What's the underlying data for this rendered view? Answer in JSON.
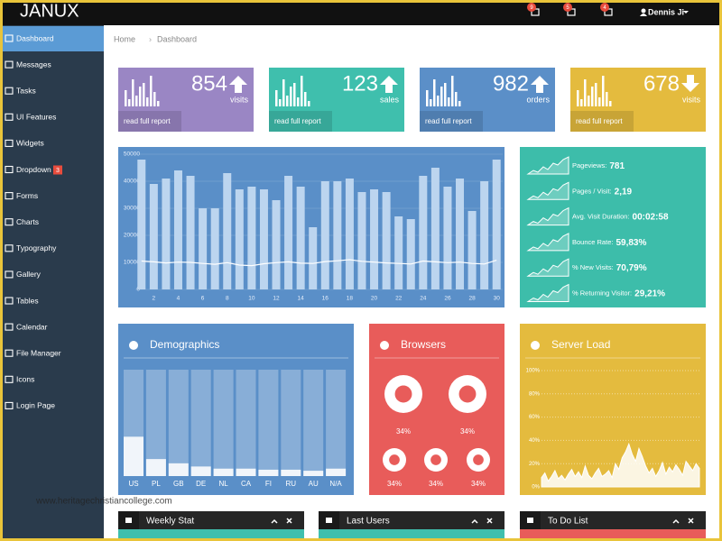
{
  "brand": "JANUX",
  "topbar": {
    "notifications": [
      "9",
      "5",
      "4"
    ],
    "user": "Dennis Ji"
  },
  "sidebar": {
    "items": [
      "Dashboard",
      "Messages",
      "Tasks",
      "UI Features",
      "Widgets",
      "Dropdown",
      "Forms",
      "Charts",
      "Typography",
      "Gallery",
      "Tables",
      "Calendar",
      "File Manager",
      "Icons",
      "Login Page"
    ],
    "dropdown_badge": "3"
  },
  "breadcrumb": [
    "Home",
    "Dashboard"
  ],
  "stat_boxes": [
    {
      "value": 854,
      "label": "visits",
      "link": "read full report",
      "color": "#9a86c4",
      "trend": "up"
    },
    {
      "value": 123,
      "label": "sales",
      "link": "read full report",
      "color": "#3fbfad",
      "trend": "up"
    },
    {
      "value": 982,
      "label": "orders",
      "link": "read full report",
      "color": "#5b8fc8",
      "trend": "up"
    },
    {
      "value": 678,
      "label": "visits",
      "link": "read full report",
      "color": "#e4bb3e",
      "trend": "down"
    }
  ],
  "traffic_chart": {
    "type": "bar",
    "x": [
      1,
      2,
      3,
      4,
      5,
      6,
      7,
      8,
      9,
      10,
      11,
      12,
      13,
      14,
      15,
      16,
      17,
      18,
      19,
      20,
      21,
      22,
      23,
      24,
      25,
      26,
      27,
      28,
      29,
      30
    ],
    "values": [
      48000,
      39000,
      41000,
      44000,
      42000,
      30000,
      30000,
      43000,
      37000,
      38000,
      37000,
      33000,
      42000,
      38000,
      23000,
      40000,
      40000,
      41000,
      36000,
      37000,
      36000,
      27000,
      26000,
      42000,
      45000,
      38000,
      41000,
      29000,
      40000,
      48000
    ],
    "line": [
      10500,
      10200,
      9800,
      10100,
      10000,
      9600,
      9300,
      9900,
      9000,
      8800,
      9500,
      9900,
      10200,
      9700,
      9600,
      10300,
      10600,
      11000,
      10400,
      10100,
      9800,
      9600,
      9400,
      10500,
      10200,
      9900,
      10100,
      9600,
      9400,
      10800
    ],
    "color": "#bcd5ef",
    "line_color": "#ffffff",
    "xlim": [
      0.5,
      30.5
    ],
    "xticks": [
      2,
      4,
      6,
      8,
      10,
      12,
      14,
      16,
      18,
      20,
      22,
      24,
      26,
      28,
      30
    ],
    "ylim": [
      0,
      50000
    ],
    "yticks": [
      0,
      10000,
      20000,
      30000,
      40000,
      50000
    ]
  },
  "visit_stats": [
    {
      "label": "Pageviews:",
      "value": "781"
    },
    {
      "label": "Pages / Visit:",
      "value": "2,19"
    },
    {
      "label": "Avg. Visit Duration:",
      "value": "00:02:58"
    },
    {
      "label": "Bounce Rate:",
      "value": "59,83%"
    },
    {
      "label": "% New Visits:",
      "value": "70,79%"
    },
    {
      "label": "% Returning Visitor:",
      "value": "29,21%"
    }
  ],
  "demographics": {
    "type": "bar",
    "title": "Demographics",
    "categories": [
      "US",
      "PL",
      "GB",
      "DE",
      "NL",
      "CA",
      "FI",
      "RU",
      "AU",
      "N/A"
    ],
    "values": [
      37,
      16,
      12,
      9,
      7,
      7,
      6,
      6,
      5,
      7
    ],
    "ylim": [
      0,
      100
    ]
  },
  "browsers": {
    "title": "Browsers",
    "shares": [
      "34%",
      "34%",
      "34%",
      "34%",
      "34%"
    ]
  },
  "server_load": {
    "type": "area",
    "title": "Server Load",
    "values": [
      8,
      12,
      5,
      9,
      14,
      7,
      10,
      6,
      11,
      15,
      9,
      13,
      8,
      18,
      10,
      7,
      12,
      16,
      9,
      11,
      14,
      8,
      20,
      15,
      25,
      30,
      37,
      28,
      22,
      33,
      26,
      18,
      12,
      16,
      9,
      14,
      21,
      11,
      17,
      13,
      19,
      15,
      10,
      22,
      18,
      14,
      20,
      16
    ],
    "ylim": [
      0,
      100
    ],
    "yticks": [
      {
        "value": 0,
        "label": "0%"
      },
      {
        "value": 20,
        "label": "20%"
      },
      {
        "value": 40,
        "label": "40%"
      },
      {
        "value": 60,
        "label": "60%"
      },
      {
        "value": 80,
        "label": "80%"
      },
      {
        "value": 100,
        "label": "100%"
      }
    ]
  },
  "panels": [
    "Weekly Stat",
    "Last Users",
    "To Do List"
  ],
  "watermark": "www.heritagechristiancollege.com"
}
